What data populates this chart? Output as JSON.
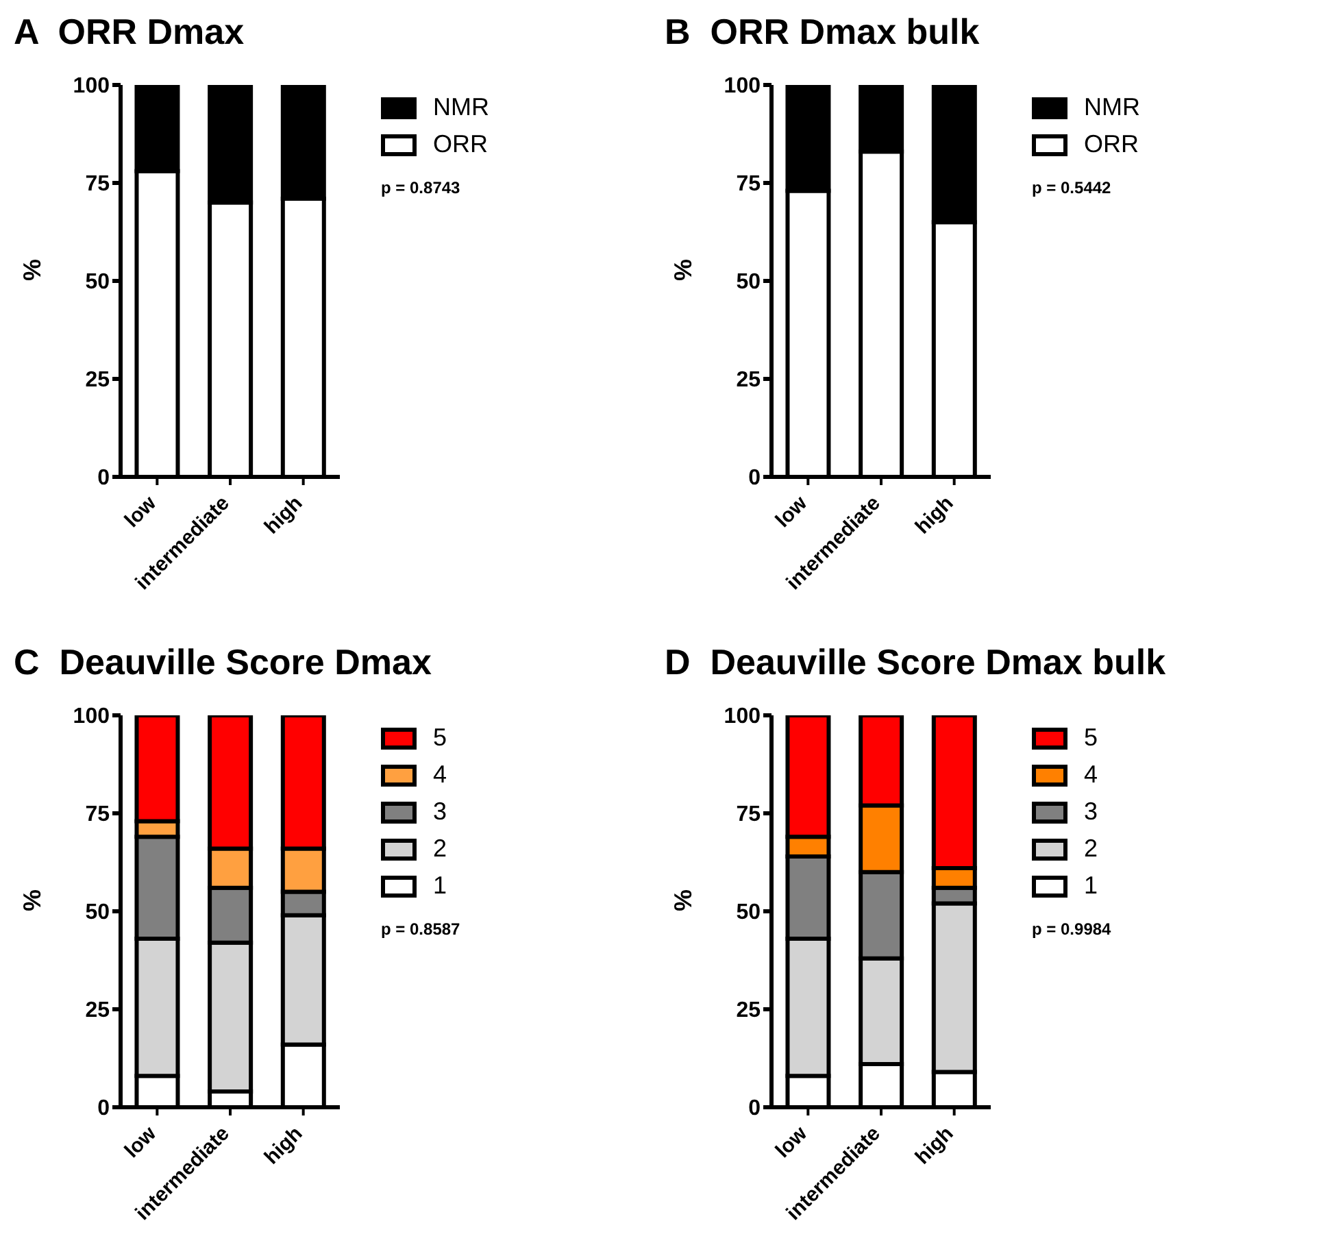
{
  "chart_data": [
    {
      "type": "bar",
      "title": "A  ORR Dmax",
      "ylabel": "%",
      "categories": [
        "low",
        "intermediate",
        "high"
      ],
      "stacked": true,
      "legend": "right",
      "ylim": [
        0,
        100
      ],
      "yticks": [
        0,
        25,
        50,
        75,
        100
      ],
      "annotations": [
        "p = 0.8743"
      ],
      "series": [
        {
          "name": "ORR",
          "color": "#ffffff",
          "values": [
            78,
            70,
            71
          ]
        },
        {
          "name": "NMR",
          "color": "#000000",
          "values": [
            22,
            30,
            29
          ]
        }
      ]
    },
    {
      "type": "bar",
      "title": "B  ORR Dmax bulk",
      "ylabel": "%",
      "categories": [
        "low",
        "intermediate",
        "high"
      ],
      "stacked": true,
      "legend": "right",
      "ylim": [
        0,
        100
      ],
      "yticks": [
        0,
        25,
        50,
        75,
        100
      ],
      "annotations": [
        "p = 0.5442"
      ],
      "series": [
        {
          "name": "ORR",
          "color": "#ffffff",
          "values": [
            73,
            83,
            65
          ]
        },
        {
          "name": "NMR",
          "color": "#000000",
          "values": [
            27,
            17,
            35
          ]
        }
      ]
    },
    {
      "type": "bar",
      "title": "C  Deauville Score Dmax",
      "ylabel": "%",
      "categories": [
        "low",
        "intermediate",
        "high"
      ],
      "stacked": true,
      "legend": "right",
      "ylim": [
        0,
        100
      ],
      "yticks": [
        0,
        25,
        50,
        75,
        100
      ],
      "annotations": [
        "p = 0.8587"
      ],
      "series": [
        {
          "name": "1",
          "color": "#ffffff",
          "values": [
            8,
            4,
            16
          ]
        },
        {
          "name": "2",
          "color": "#d3d3d3",
          "values": [
            35,
            38,
            33
          ]
        },
        {
          "name": "3",
          "color": "#808080",
          "values": [
            26,
            14,
            6
          ]
        },
        {
          "name": "4",
          "color": "#ffa040",
          "values": [
            4,
            10,
            11
          ]
        },
        {
          "name": "5",
          "color": "#ff0000",
          "values": [
            27,
            34,
            34
          ]
        }
      ]
    },
    {
      "type": "bar",
      "title": "D  Deauville Score Dmax bulk",
      "ylabel": "%",
      "categories": [
        "low",
        "intermediate",
        "high"
      ],
      "stacked": true,
      "legend": "right",
      "ylim": [
        0,
        100
      ],
      "yticks": [
        0,
        25,
        50,
        75,
        100
      ],
      "annotations": [
        "p = 0.9984"
      ],
      "series": [
        {
          "name": "1",
          "color": "#ffffff",
          "values": [
            8,
            11,
            9
          ]
        },
        {
          "name": "2",
          "color": "#d3d3d3",
          "values": [
            35,
            27,
            43
          ]
        },
        {
          "name": "3",
          "color": "#808080",
          "values": [
            21,
            22,
            4
          ]
        },
        {
          "name": "4",
          "color": "#ff8000",
          "values": [
            5,
            17,
            5
          ]
        },
        {
          "name": "5",
          "color": "#ff0000",
          "values": [
            31,
            23,
            39
          ]
        }
      ]
    }
  ]
}
